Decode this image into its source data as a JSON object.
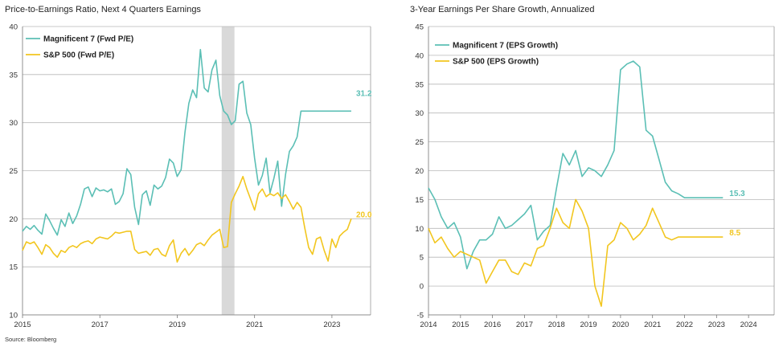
{
  "source": "Source: Bloomberg",
  "colors": {
    "mag7": "#5bbfb5",
    "sp500": "#f2c61f",
    "recession": "#d9d9d9",
    "grid": "#b8b8b8"
  },
  "chart_data": [
    {
      "type": "line",
      "title": "Price-to-Earnings Ratio, Next 4 Quarters Earnings",
      "xlabel": "",
      "ylabel": "",
      "xlim": [
        2015,
        2024.0
      ],
      "ylim": [
        10,
        40
      ],
      "xticks": [
        2015,
        2017,
        2019,
        2021,
        2023
      ],
      "yticks": [
        10,
        15,
        20,
        25,
        30,
        35,
        40
      ],
      "grid": true,
      "legend_position": "top-left",
      "shaded_region": [
        2020.15,
        2020.48
      ],
      "series": [
        {
          "name": "Magnificent 7 (Fwd P/E)",
          "color_key": "mag7",
          "end_label": "31.2",
          "x": [
            2015.0,
            2015.1,
            2015.2,
            2015.3,
            2015.4,
            2015.5,
            2015.6,
            2015.7,
            2015.8,
            2015.9,
            2016.0,
            2016.1,
            2016.2,
            2016.3,
            2016.4,
            2016.5,
            2016.6,
            2016.7,
            2016.8,
            2016.9,
            2017.0,
            2017.1,
            2017.2,
            2017.3,
            2017.4,
            2017.5,
            2017.6,
            2017.7,
            2017.8,
            2017.9,
            2018.0,
            2018.1,
            2018.2,
            2018.3,
            2018.4,
            2018.5,
            2018.6,
            2018.7,
            2018.8,
            2018.9,
            2019.0,
            2019.1,
            2019.2,
            2019.3,
            2019.4,
            2019.5,
            2019.6,
            2019.7,
            2019.8,
            2019.9,
            2020.0,
            2020.1,
            2020.2,
            2020.3,
            2020.4,
            2020.5,
            2020.6,
            2020.7,
            2020.8,
            2020.9,
            2021.0,
            2021.1,
            2021.2,
            2021.3,
            2021.4,
            2021.5,
            2021.6,
            2021.7,
            2021.8,
            2021.9,
            2022.0,
            2022.1,
            2022.2,
            2022.3,
            2022.4,
            2022.5,
            2022.6,
            2022.7,
            2022.8,
            2022.9,
            2023.0,
            2023.1,
            2023.2,
            2023.3,
            2023.4,
            2023.5
          ],
          "y": [
            18.7,
            19.2,
            18.9,
            19.3,
            18.8,
            18.4,
            20.5,
            19.8,
            19.0,
            18.3,
            19.9,
            19.2,
            20.6,
            19.5,
            20.3,
            21.5,
            23.1,
            23.3,
            22.3,
            23.2,
            22.9,
            23.0,
            22.8,
            23.1,
            21.5,
            21.8,
            22.6,
            25.2,
            24.6,
            21.2,
            19.4,
            22.5,
            22.9,
            21.4,
            23.5,
            23.1,
            23.4,
            24.3,
            26.2,
            25.8,
            24.4,
            25.1,
            29.0,
            32.0,
            33.4,
            32.6,
            37.6,
            33.6,
            33.2,
            35.5,
            36.5,
            32.8,
            31.2,
            30.8,
            29.8,
            30.2,
            34.0,
            34.3,
            31.0,
            29.8,
            26.3,
            23.5,
            24.5,
            26.3,
            22.7,
            24.2,
            26.0,
            21.3,
            24.6,
            27.0,
            27.6,
            28.5,
            31.2,
            31.2,
            31.2,
            31.2,
            31.2,
            31.2,
            31.2,
            31.2,
            31.2,
            31.2,
            31.2,
            31.2,
            31.2,
            31.2
          ]
        },
        {
          "name": "S&P 500 (Fwd P/E)",
          "color_key": "sp500",
          "end_label": "20.0",
          "x": [
            2015.0,
            2015.1,
            2015.2,
            2015.3,
            2015.4,
            2015.5,
            2015.6,
            2015.7,
            2015.8,
            2015.9,
            2016.0,
            2016.1,
            2016.2,
            2016.3,
            2016.4,
            2016.5,
            2016.6,
            2016.7,
            2016.8,
            2016.9,
            2017.0,
            2017.1,
            2017.2,
            2017.3,
            2017.4,
            2017.5,
            2017.6,
            2017.7,
            2017.8,
            2017.9,
            2018.0,
            2018.1,
            2018.2,
            2018.3,
            2018.4,
            2018.5,
            2018.6,
            2018.7,
            2018.8,
            2018.9,
            2019.0,
            2019.1,
            2019.2,
            2019.3,
            2019.4,
            2019.5,
            2019.6,
            2019.7,
            2019.8,
            2019.9,
            2020.0,
            2020.1,
            2020.2,
            2020.3,
            2020.4,
            2020.5,
            2020.6,
            2020.7,
            2020.8,
            2020.9,
            2021.0,
            2021.1,
            2021.2,
            2021.3,
            2021.4,
            2021.5,
            2021.6,
            2021.7,
            2021.8,
            2021.9,
            2022.0,
            2022.1,
            2022.2,
            2022.3,
            2022.4,
            2022.5,
            2022.6,
            2022.7,
            2022.8,
            2022.9,
            2023.0,
            2023.1,
            2023.2,
            2023.3,
            2023.4,
            2023.5
          ],
          "y": [
            16.7,
            17.6,
            17.4,
            17.6,
            17.0,
            16.3,
            17.3,
            17.0,
            16.4,
            16.0,
            16.7,
            16.5,
            17.0,
            17.2,
            17.0,
            17.4,
            17.6,
            17.7,
            17.4,
            17.9,
            18.1,
            18.0,
            17.9,
            18.2,
            18.6,
            18.5,
            18.6,
            18.7,
            18.7,
            16.8,
            16.4,
            16.5,
            16.6,
            16.2,
            16.8,
            16.9,
            16.3,
            16.1,
            17.2,
            17.8,
            15.5,
            16.4,
            16.9,
            16.2,
            16.7,
            17.3,
            17.5,
            17.2,
            17.8,
            18.3,
            18.6,
            18.9,
            17.0,
            17.1,
            21.7,
            22.6,
            23.4,
            24.4,
            23.1,
            22.0,
            20.9,
            22.6,
            23.1,
            22.3,
            22.6,
            22.4,
            22.7,
            22.1,
            22.5,
            21.8,
            21.0,
            21.7,
            21.2,
            19.0,
            17.0,
            16.3,
            17.9,
            18.1,
            16.7,
            15.6,
            17.9,
            17.0,
            18.2,
            18.6,
            18.9,
            20.0
          ]
        }
      ]
    },
    {
      "type": "line",
      "title": "3-Year Earnings Per Share Growth, Annualized",
      "xlabel": "",
      "ylabel": "",
      "xlim": [
        2014,
        2024.8
      ],
      "ylim": [
        -5,
        45
      ],
      "xticks": [
        2014,
        2015,
        2016,
        2017,
        2018,
        2019,
        2020,
        2021,
        2022,
        2023,
        2024
      ],
      "yticks": [
        -5,
        0,
        5,
        10,
        15,
        20,
        25,
        30,
        35,
        40,
        45
      ],
      "grid": true,
      "legend_position": "top-left",
      "series": [
        {
          "name": "Magnificent 7 (EPS Growth)",
          "color_key": "mag7",
          "end_label": "15.3",
          "x": [
            2014.0,
            2014.2,
            2014.4,
            2014.6,
            2014.8,
            2015.0,
            2015.2,
            2015.4,
            2015.6,
            2015.8,
            2016.0,
            2016.2,
            2016.4,
            2016.6,
            2016.8,
            2017.0,
            2017.2,
            2017.4,
            2017.6,
            2017.8,
            2018.0,
            2018.2,
            2018.4,
            2018.6,
            2018.8,
            2019.0,
            2019.2,
            2019.4,
            2019.6,
            2019.8,
            2020.0,
            2020.2,
            2020.4,
            2020.6,
            2020.8,
            2021.0,
            2021.2,
            2021.4,
            2021.6,
            2021.8,
            2022.0,
            2022.2,
            2022.4,
            2022.6,
            2022.8,
            2023.0,
            2023.2
          ],
          "y": [
            17.0,
            15.0,
            12.0,
            10.0,
            11.0,
            8.5,
            3.0,
            6.0,
            8.0,
            8.0,
            9.0,
            12.0,
            10.0,
            10.5,
            11.5,
            12.5,
            14.0,
            8.0,
            9.5,
            10.5,
            17.0,
            23.0,
            21.0,
            23.5,
            19.0,
            20.5,
            20.0,
            19.0,
            21.0,
            23.5,
            37.5,
            38.5,
            39.0,
            38.0,
            27.0,
            26.0,
            22.0,
            18.0,
            16.5,
            16.0,
            15.3,
            15.3,
            15.3,
            15.3,
            15.3,
            15.3,
            15.3
          ]
        },
        {
          "name": "S&P 500 (EPS Growth)",
          "color_key": "sp500",
          "end_label": "8.5",
          "x": [
            2014.0,
            2014.2,
            2014.4,
            2014.6,
            2014.8,
            2015.0,
            2015.2,
            2015.4,
            2015.6,
            2015.8,
            2016.0,
            2016.2,
            2016.4,
            2016.6,
            2016.8,
            2017.0,
            2017.2,
            2017.4,
            2017.6,
            2017.8,
            2018.0,
            2018.2,
            2018.4,
            2018.6,
            2018.8,
            2019.0,
            2019.2,
            2019.4,
            2019.6,
            2019.8,
            2020.0,
            2020.2,
            2020.4,
            2020.6,
            2020.8,
            2021.0,
            2021.2,
            2021.4,
            2021.6,
            2021.8,
            2022.0,
            2022.2,
            2022.4,
            2022.6,
            2022.8,
            2023.0,
            2023.2
          ],
          "y": [
            10.0,
            7.5,
            8.5,
            6.5,
            5.0,
            6.0,
            5.5,
            5.0,
            4.5,
            0.5,
            2.5,
            4.5,
            4.5,
            2.5,
            2.0,
            4.0,
            3.5,
            6.5,
            7.0,
            10.0,
            13.5,
            11.0,
            10.0,
            15.0,
            13.0,
            10.0,
            0.0,
            -3.5,
            7.0,
            8.0,
            11.0,
            10.0,
            8.0,
            9.0,
            10.5,
            13.5,
            11.0,
            8.5,
            8.0,
            8.5,
            8.5,
            8.5,
            8.5,
            8.5,
            8.5,
            8.5,
            8.5
          ]
        }
      ]
    }
  ]
}
